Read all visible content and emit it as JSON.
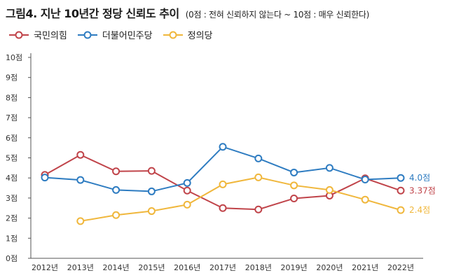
{
  "chart_data": {
    "type": "line",
    "title": "그림4. 지난 10년간 정당 신뢰도 추이",
    "subtitle": "(0점 : 전혀 신뢰하지 않는다 ~ 10점 : 매우 신뢰한다)",
    "categories": [
      "2012년",
      "2013년",
      "2014년",
      "2015년",
      "2016년",
      "2017년",
      "2018년",
      "2019년",
      "2020년",
      "2021년",
      "2022년"
    ],
    "y_ticks": [
      "0점",
      "1점",
      "2점",
      "3점",
      "4점",
      "5점",
      "6점",
      "7점",
      "8점",
      "9점",
      "10점"
    ],
    "ylim": [
      0,
      10
    ],
    "grid": false,
    "legend_position": "top-left",
    "series": [
      {
        "name": "국민의힘",
        "color": "#c0444a",
        "values": [
          4.15,
          5.15,
          4.33,
          4.35,
          3.37,
          2.5,
          2.43,
          2.98,
          3.12,
          3.98,
          3.37
        ],
        "end_label": "3.37점"
      },
      {
        "name": "더불어민주당",
        "color": "#2e7cc1",
        "values": [
          4.02,
          3.9,
          3.4,
          3.33,
          3.75,
          5.55,
          4.97,
          4.27,
          4.5,
          3.92,
          4.0
        ],
        "end_label": "4.0점"
      },
      {
        "name": "정의당",
        "color": "#f0b73c",
        "values": [
          null,
          1.85,
          2.15,
          2.35,
          2.67,
          3.68,
          4.03,
          3.63,
          3.4,
          2.92,
          2.4
        ],
        "end_label": "2.4점"
      }
    ]
  }
}
